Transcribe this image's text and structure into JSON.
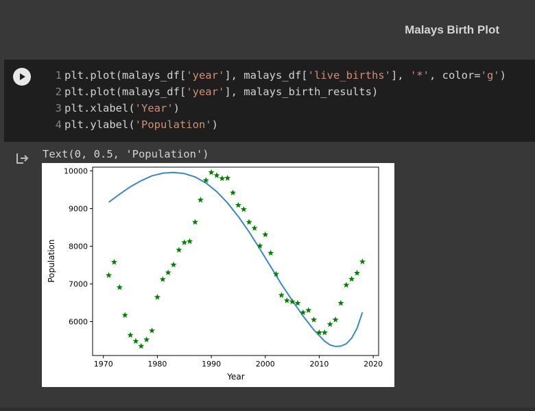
{
  "notebook": {
    "title": "Malays Birth Plot"
  },
  "cell": {
    "lines": [
      {
        "num": "1",
        "parts": [
          {
            "t": "plt.plot(malays_df[",
            "s": false
          },
          {
            "t": "'year'",
            "s": true
          },
          {
            "t": "], malays_df[",
            "s": false
          },
          {
            "t": "'live_births'",
            "s": true
          },
          {
            "t": "], ",
            "s": false
          },
          {
            "t": "'*'",
            "s": true
          },
          {
            "t": ", color=",
            "s": false
          },
          {
            "t": "'g'",
            "s": true
          },
          {
            "t": ")",
            "s": false
          }
        ]
      },
      {
        "num": "2",
        "parts": [
          {
            "t": "plt.plot(malays_df[",
            "s": false
          },
          {
            "t": "'year'",
            "s": true
          },
          {
            "t": "], malays_birth_results)",
            "s": false
          }
        ]
      },
      {
        "num": "3",
        "parts": [
          {
            "t": "plt.xlabel(",
            "s": false
          },
          {
            "t": "'Year'",
            "s": true
          },
          {
            "t": ")",
            "s": false
          }
        ]
      },
      {
        "num": "4",
        "parts": [
          {
            "t": "plt.ylabel(",
            "s": false
          },
          {
            "t": "'Population'",
            "s": true
          },
          {
            "t": ")",
            "s": false
          }
        ]
      }
    ]
  },
  "output": {
    "text": "Text(0, 0.5, 'Population')"
  },
  "colors": {
    "scatter": "#008000",
    "line": "#3a87c8"
  },
  "chart_data": {
    "type": "line",
    "xlabel": "Year",
    "ylabel": "Population",
    "xlim": [
      1968,
      2021
    ],
    "ylim": [
      5100,
      10100
    ],
    "xticks": [
      1970,
      1980,
      1990,
      2000,
      2010,
      2020
    ],
    "yticks": [
      6000,
      7000,
      8000,
      9000,
      10000
    ],
    "series": [
      {
        "name": "live_births",
        "style": "*",
        "color": "g",
        "x": [
          1971,
          1972,
          1973,
          1974,
          1975,
          1976,
          1977,
          1978,
          1979,
          1980,
          1981,
          1982,
          1983,
          1984,
          1985,
          1986,
          1987,
          1988,
          1989,
          1990,
          1991,
          1992,
          1993,
          1994,
          1995,
          1996,
          1997,
          1998,
          1999,
          2000,
          2001,
          2002,
          2003,
          2004,
          2005,
          2006,
          2007,
          2008,
          2009,
          2010,
          2011,
          2012,
          2013,
          2014,
          2015,
          2016,
          2017,
          2018
        ],
        "y": [
          7230,
          7580,
          6910,
          6170,
          5640,
          5480,
          5350,
          5520,
          5760,
          6650,
          7120,
          7300,
          7510,
          7900,
          8100,
          8130,
          8640,
          9230,
          9750,
          9960,
          9880,
          9800,
          9810,
          9420,
          9090,
          8980,
          8640,
          8480,
          8010,
          8310,
          7820,
          7260,
          6700,
          6560,
          6530,
          6490,
          6240,
          6300,
          6050,
          5710,
          5710,
          5930,
          6050,
          6490,
          6970,
          7130,
          7290,
          7590
        ]
      },
      {
        "name": "malays_birth_results",
        "style": "-",
        "x": [
          1971,
          1973,
          1975,
          1977,
          1979,
          1981,
          1983,
          1985,
          1987,
          1989,
          1991,
          1993,
          1995,
          1997,
          1999,
          2001,
          2003,
          2005,
          2007,
          2009,
          2011,
          2012,
          2013,
          2014,
          2015,
          2016,
          2017,
          2018
        ],
        "y": [
          9170,
          9380,
          9580,
          9740,
          9870,
          9940,
          9960,
          9930,
          9840,
          9680,
          9450,
          9150,
          8790,
          8380,
          7930,
          7460,
          6990,
          6560,
          6150,
          5780,
          5480,
          5380,
          5340,
          5350,
          5410,
          5560,
          5820,
          6250
        ]
      }
    ]
  }
}
